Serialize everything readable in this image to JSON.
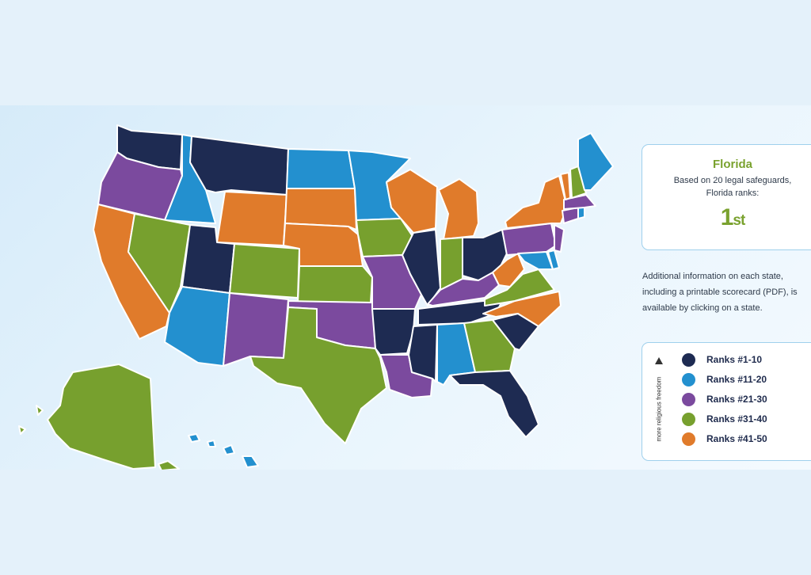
{
  "info": {
    "state": "Florida",
    "line1": "Based on 20 legal safeguards,",
    "line2": "Florida ranks:",
    "rank": "1",
    "rank_suffix": "st"
  },
  "note": {
    "line1": "Additional information on each state,",
    "line2": "including a printable scorecard (PDF), is",
    "line3": "available by clicking on a state."
  },
  "legend": {
    "axis_label": "more religious freedom",
    "items": [
      {
        "label": "Ranks #1-10",
        "color": "#1e2b52"
      },
      {
        "label": "Ranks #11-20",
        "color": "#2390cf"
      },
      {
        "label": "Ranks #21-30",
        "color": "#7b4a9e"
      },
      {
        "label": "Ranks #31-40",
        "color": "#77a02e"
      },
      {
        "label": "Ranks #41-50",
        "color": "#e07b2b"
      }
    ]
  },
  "colors": {
    "r1": "#1e2b52",
    "r2": "#2390cf",
    "r3": "#7b4a9e",
    "r4": "#77a02e",
    "r5": "#e07b2b",
    "accent": "#7aa22f"
  }
}
